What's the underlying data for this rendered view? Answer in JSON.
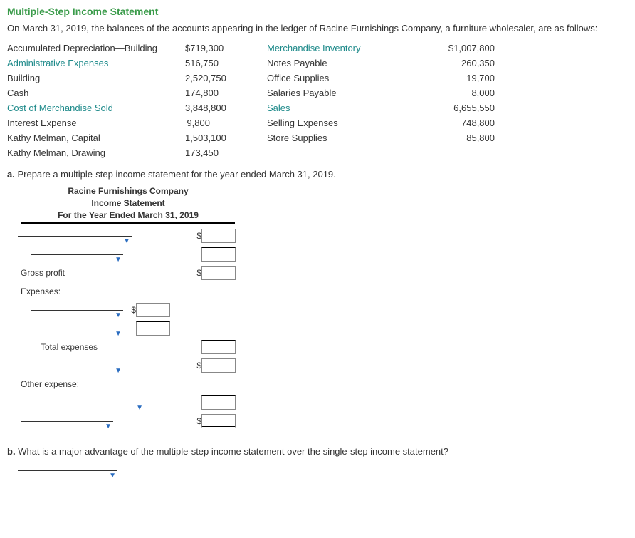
{
  "title": "Multiple-Step Income Statement",
  "intro": "On March 31, 2019, the balances of the accounts appearing in the ledger of Racine Furnishings Company, a furniture wholesaler, are as follows:",
  "ledger": [
    {
      "l1": "Accumulated Depreciation—Building",
      "v1": "$719,300",
      "l2": "Merchandise Inventory",
      "v2": "$1,007,800",
      "link1": false,
      "link2": true
    },
    {
      "l1": "Administrative Expenses",
      "v1": "516,750",
      "l2": "Notes Payable",
      "v2": "260,350",
      "link1": true,
      "link2": false
    },
    {
      "l1": "Building",
      "v1": "2,520,750",
      "l2": "Office Supplies",
      "v2": "19,700",
      "link1": false,
      "link2": false
    },
    {
      "l1": "Cash",
      "v1": "174,800",
      "l2": "Salaries Payable",
      "v2": "8,000",
      "link1": false,
      "link2": false
    },
    {
      "l1": "Cost of Merchandise Sold",
      "v1": "3,848,800",
      "l2": "Sales",
      "v2": "6,655,550",
      "link1": true,
      "link2": true
    },
    {
      "l1": "Interest Expense",
      "v1": "9,800",
      "l2": "Selling Expenses",
      "v2": "748,800",
      "link1": false,
      "link2": false
    },
    {
      "l1": "Kathy Melman, Capital",
      "v1": "1,503,100",
      "l2": "Store Supplies",
      "v2": "85,800",
      "link1": false,
      "link2": false
    },
    {
      "l1": "Kathy Melman, Drawing",
      "v1": "173,450",
      "l2": "",
      "v2": "",
      "link1": false,
      "link2": false
    }
  ],
  "qa": "a.  Prepare a multiple-step income statement for the year ended March 31, 2019.",
  "stmt": {
    "company": "Racine Furnishings Company",
    "name": "Income Statement",
    "period": "For the Year Ended March 31, 2019"
  },
  "labels": {
    "gross_profit": "Gross profit",
    "expenses": "Expenses:",
    "total_expenses": "Total expenses",
    "other_expense": "Other expense:"
  },
  "dollar": "$",
  "qb": "b.  What is a major advantage of the multiple-step income statement over the single-step income statement?",
  "colors": {
    "green": "#3a9b4a",
    "teal": "#1e8a8a",
    "caret": "#2a6cc0"
  }
}
